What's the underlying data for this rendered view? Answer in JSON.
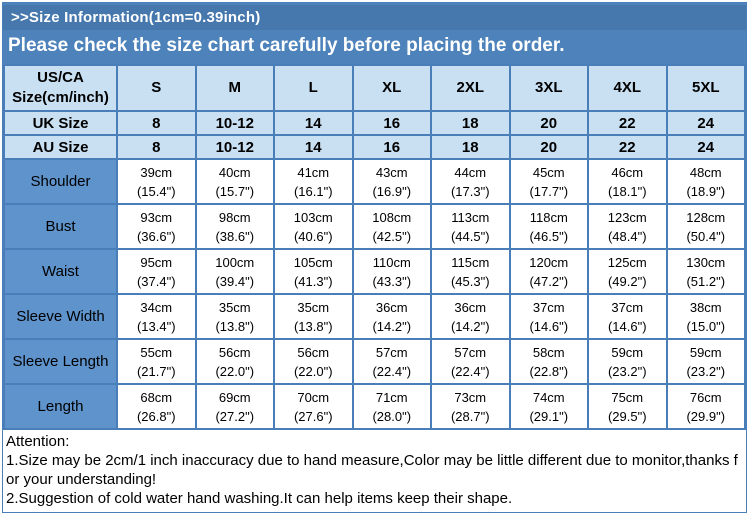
{
  "banner": {
    "title": ">>Size Information(1cm=0.39inch)",
    "subtitle": "Please check the size chart carefully before placing the order."
  },
  "table": {
    "corner": {
      "line1": "US/CA",
      "line2": "Size(cm/inch)"
    },
    "columns": [
      "S",
      "M",
      "L",
      "XL",
      "2XL",
      "3XL",
      "4XL",
      "5XL"
    ],
    "size_rows": [
      {
        "label": "UK Size",
        "values": [
          "8",
          "10-12",
          "14",
          "16",
          "18",
          "20",
          "22",
          "24"
        ]
      },
      {
        "label": "AU Size",
        "values": [
          "8",
          "10-12",
          "14",
          "16",
          "18",
          "20",
          "22",
          "24"
        ]
      }
    ],
    "measurement_rows": [
      {
        "label": "Shoulder",
        "cells": [
          [
            "39cm",
            "(15.4\")"
          ],
          [
            "40cm",
            "(15.7\")"
          ],
          [
            "41cm",
            "(16.1\")"
          ],
          [
            "43cm",
            "(16.9\")"
          ],
          [
            "44cm",
            "(17.3\")"
          ],
          [
            "45cm",
            "(17.7\")"
          ],
          [
            "46cm",
            "(18.1\")"
          ],
          [
            "48cm",
            "(18.9\")"
          ]
        ]
      },
      {
        "label": "Bust",
        "cells": [
          [
            "93cm",
            "(36.6\")"
          ],
          [
            "98cm",
            "(38.6\")"
          ],
          [
            "103cm",
            "(40.6\")"
          ],
          [
            "108cm",
            "(42.5\")"
          ],
          [
            "113cm",
            "(44.5\")"
          ],
          [
            "118cm",
            "(46.5\")"
          ],
          [
            "123cm",
            "(48.4\")"
          ],
          [
            "128cm",
            "(50.4\")"
          ]
        ]
      },
      {
        "label": "Waist",
        "cells": [
          [
            "95cm",
            "(37.4\")"
          ],
          [
            "100cm",
            "(39.4\")"
          ],
          [
            "105cm",
            "(41.3\")"
          ],
          [
            "110cm",
            "(43.3\")"
          ],
          [
            "115cm",
            "(45.3\")"
          ],
          [
            "120cm",
            "(47.2\")"
          ],
          [
            "125cm",
            "(49.2\")"
          ],
          [
            "130cm",
            "(51.2\")"
          ]
        ]
      },
      {
        "label": "Sleeve Width",
        "cells": [
          [
            "34cm",
            "(13.4\")"
          ],
          [
            "35cm",
            "(13.8\")"
          ],
          [
            "35cm",
            "(13.8\")"
          ],
          [
            "36cm",
            "(14.2\")"
          ],
          [
            "36cm",
            "(14.2\")"
          ],
          [
            "37cm",
            "(14.6\")"
          ],
          [
            "37cm",
            "(14.6\")"
          ],
          [
            "38cm",
            "(15.0\")"
          ]
        ]
      },
      {
        "label": "Sleeve Length",
        "cells": [
          [
            "55cm",
            "(21.7\")"
          ],
          [
            "56cm",
            "(22.0\")"
          ],
          [
            "56cm",
            "(22.0\")"
          ],
          [
            "57cm",
            "(22.4\")"
          ],
          [
            "57cm",
            "(22.4\")"
          ],
          [
            "58cm",
            "(22.8\")"
          ],
          [
            "59cm",
            "(23.2\")"
          ],
          [
            "59cm",
            "(23.2\")"
          ]
        ]
      },
      {
        "label": "Length",
        "cells": [
          [
            "68cm",
            "(26.8\")"
          ],
          [
            "69cm",
            "(27.2\")"
          ],
          [
            "70cm",
            "(27.6\")"
          ],
          [
            "71cm",
            "(28.0\")"
          ],
          [
            "73cm",
            "(28.7\")"
          ],
          [
            "74cm",
            "(29.1\")"
          ],
          [
            "75cm",
            "(29.5\")"
          ],
          [
            "76cm",
            "(29.9\")"
          ]
        ]
      }
    ]
  },
  "attention": {
    "title": "Attention:",
    "notes": [
      "1.Size may be 2cm/1 inch inaccuracy due to hand measure,Color may be little different due to monitor,thanks for your understanding!",
      "2.Suggestion of cold water hand washing.It can help items keep their shape."
    ]
  },
  "colors": {
    "banner_blue": "#4d82ba",
    "banner_title_bar": "#4678ae",
    "header_light_blue": "#c9dff2",
    "label_blue": "#5e93cc",
    "grid_border": "#4a7eb8",
    "text_on_banner": "#ffffff"
  }
}
